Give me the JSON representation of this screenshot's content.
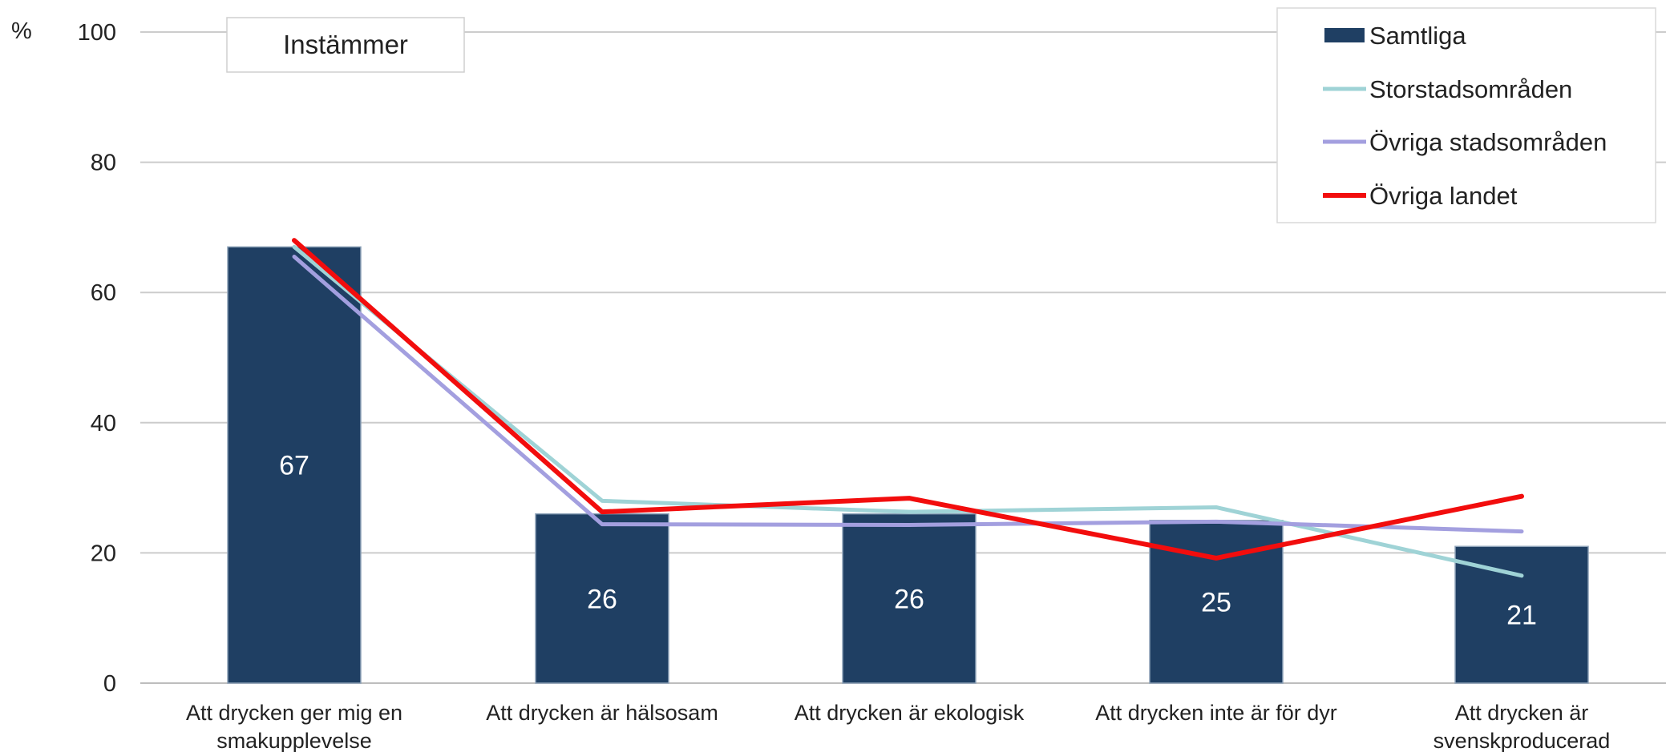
{
  "chart_data": {
    "type": "bar",
    "unit_label": "%",
    "annotation": "Instämmer",
    "categories": [
      [
        "Att drycken ger mig en",
        "smakupplevelse"
      ],
      [
        "Att drycken är hälsosam"
      ],
      [
        "Att drycken är ekologisk"
      ],
      [
        "Att drycken inte är för dyr"
      ],
      [
        "Att drycken är",
        "svenskproducerad"
      ]
    ],
    "ylim": [
      0,
      100
    ],
    "yticks": [
      0,
      20,
      40,
      60,
      80,
      100
    ],
    "grid": true,
    "legend_position": "top-right",
    "series": [
      {
        "name": "Samtliga",
        "kind": "bar",
        "color": "#1f3f63",
        "values": [
          67,
          26,
          26,
          25,
          21
        ],
        "labels": [
          "67",
          "26",
          "26",
          "25",
          "21"
        ]
      },
      {
        "name": "Storstadsområden",
        "kind": "line",
        "color": "#9fd3d6",
        "values": [
          67,
          28,
          26.3,
          27,
          16.5
        ]
      },
      {
        "name": "Övriga stadsområden",
        "kind": "line",
        "color": "#a39fdf",
        "values": [
          65.5,
          24.4,
          24.3,
          24.8,
          23.3
        ]
      },
      {
        "name": "Övriga landet",
        "kind": "line",
        "color": "#f20d0d",
        "values": [
          68,
          26.3,
          28.4,
          19.2,
          28.7
        ]
      }
    ]
  }
}
